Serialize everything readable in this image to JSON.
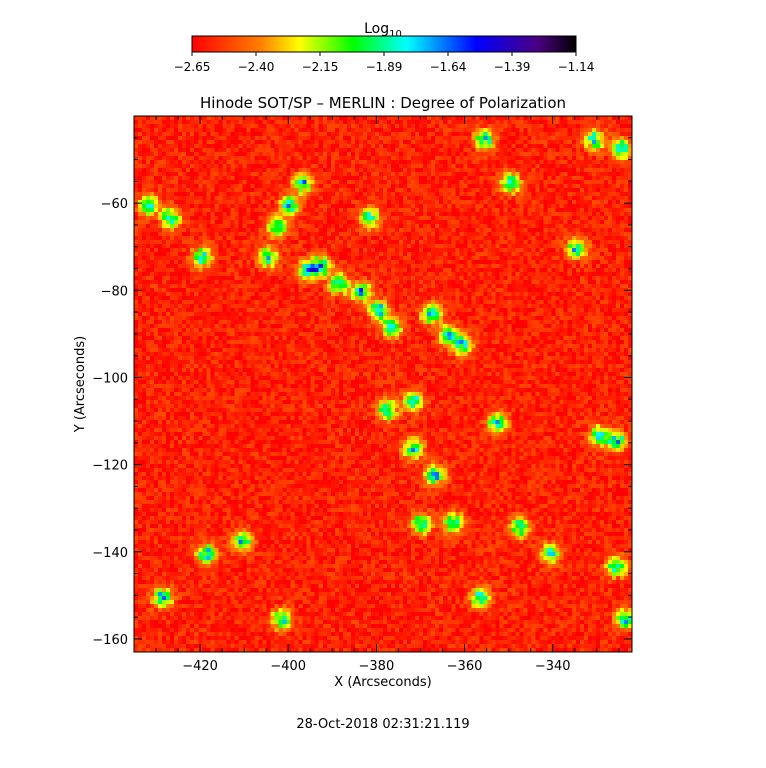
{
  "chart_data": {
    "type": "heatmap",
    "title": "Hinode SOT/SP – MERLIN : Degree of Polarization",
    "xlabel": "X (Arcseconds)",
    "ylabel": "Y (Arcseconds)",
    "xlim": [
      -435,
      -322
    ],
    "ylim": [
      -163,
      -40
    ],
    "xticks": [
      -420,
      -400,
      -380,
      -360,
      -340
    ],
    "yticks": [
      -160,
      -140,
      -120,
      -100,
      -80,
      -60
    ],
    "timestamp": "28-Oct-2018 02:31:21.119",
    "colorbar": {
      "label_main": "Log",
      "label_sub": "10",
      "ticks": [
        "-2.65",
        "-2.40",
        "-2.15",
        "-1.89",
        "-1.64",
        "-1.39",
        "-1.14"
      ],
      "range": [
        -2.65,
        -1.14
      ],
      "colors": [
        "#ff0000",
        "#ff7f00",
        "#ffff00",
        "#00ff00",
        "#00ffff",
        "#0000ff",
        "#6a0dad",
        "#000000"
      ]
    },
    "field": {
      "background_level": -2.58,
      "network_features_x_y": [
        [
          -432,
          -60
        ],
        [
          -427,
          -63
        ],
        [
          -420,
          -72
        ],
        [
          -405,
          -72
        ],
        [
          -403,
          -65
        ],
        [
          -400,
          -60
        ],
        [
          -397,
          -55
        ],
        [
          -396,
          -75
        ],
        [
          -393,
          -74
        ],
        [
          -389,
          -78
        ],
        [
          -384,
          -80
        ],
        [
          -380,
          -84
        ],
        [
          -377,
          -88
        ],
        [
          -368,
          -85
        ],
        [
          -364,
          -90
        ],
        [
          -361,
          -92
        ],
        [
          -372,
          -105
        ],
        [
          -378,
          -107
        ],
        [
          -372,
          -116
        ],
        [
          -367,
          -122
        ],
        [
          -370,
          -133
        ],
        [
          -363,
          -133
        ],
        [
          -357,
          -150
        ],
        [
          -411,
          -137
        ],
        [
          -429,
          -150
        ],
        [
          -419,
          -140
        ],
        [
          -402,
          -155
        ],
        [
          -350,
          -55
        ],
        [
          -356,
          -45
        ],
        [
          -331,
          -45
        ],
        [
          -325,
          -47
        ],
        [
          -335,
          -70
        ],
        [
          -330,
          -113
        ],
        [
          -326,
          -114
        ],
        [
          -341,
          -140
        ],
        [
          -348,
          -134
        ],
        [
          -326,
          -143
        ],
        [
          -324,
          -155
        ],
        [
          -382,
          -63
        ],
        [
          -353,
          -110
        ]
      ]
    }
  }
}
